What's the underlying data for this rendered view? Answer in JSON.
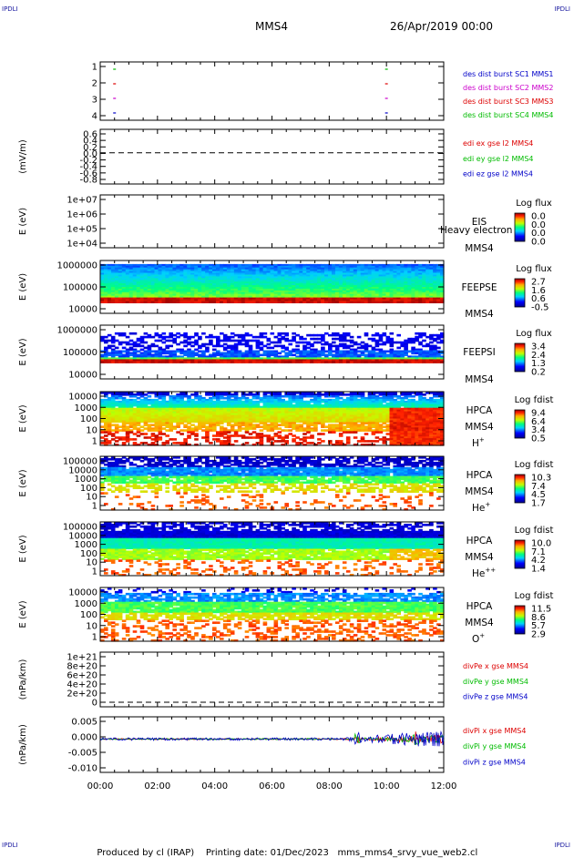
{
  "header": {
    "corner_tl": "IPDLI",
    "corner_tr": "IPDLI",
    "corner_bl": "IPDLI",
    "corner_br": "IPDLI",
    "mission": "MMS4",
    "date": "26/Apr/2019 00:00"
  },
  "footer": {
    "produced_by": "Produced by cl (IRAP)",
    "printing_date": "Printing date: 01/Dec/2023",
    "file": "mms_mms4_srvy_vue_web2.cl"
  },
  "colors": {
    "mms1": "#0000c8",
    "mms2": "#cc00cc",
    "mms3": "#dd0000",
    "mms4": "#00bb00",
    "ex": "#dd0000",
    "ey": "#00bb00",
    "ez": "#0000c8"
  },
  "chart_data": [
    {
      "id": "burst",
      "type": "scatter",
      "ylabel": "",
      "y_ticks": [
        "1",
        "2",
        "3",
        "4"
      ],
      "ylim": [
        0.5,
        4.5
      ],
      "legend": [
        {
          "text": "des dist burst SC1 MMS1",
          "color": "#0000c8"
        },
        {
          "text": "des dist burst SC2 MMS2",
          "color": "#cc00cc"
        },
        {
          "text": "des dist burst SC3 MMS3",
          "color": "#dd0000"
        },
        {
          "text": "des dist burst SC4 MMS4",
          "color": "#00bb00"
        }
      ],
      "series": [
        {
          "name": "des dist burst SC1 MMS1",
          "x": [
            0.5,
            10.0
          ],
          "y": [
            1,
            1
          ],
          "color": "#0000c8"
        },
        {
          "name": "des dist burst SC2 MMS2",
          "x": [
            0.5,
            10.0
          ],
          "y": [
            2,
            2
          ],
          "color": "#cc00cc"
        },
        {
          "name": "des dist burst SC3 MMS3",
          "x": [
            0.5,
            10.0
          ],
          "y": [
            3,
            3
          ],
          "color": "#dd0000"
        },
        {
          "name": "des dist burst SC4 MMS4",
          "x": [
            0.5,
            10.0
          ],
          "y": [
            4,
            4
          ],
          "color": "#00bb00"
        }
      ]
    },
    {
      "id": "edi",
      "type": "line",
      "ylabel": "(mV/m)",
      "y_ticks": [
        "0.6",
        "0.4",
        "0.2",
        "0.0",
        "-0.2",
        "-0.4",
        "-0.6",
        "-0.8"
      ],
      "ylim": [
        -0.85,
        0.65
      ],
      "zero_line": true,
      "legend": [
        {
          "text": "edi ex gse l2 MMS4",
          "color": "#dd0000"
        },
        {
          "text": "edi ey gse l2 MMS4",
          "color": "#00bb00"
        },
        {
          "text": "edi ez gse l2 MMS4",
          "color": "#0000c8"
        }
      ]
    },
    {
      "id": "eis",
      "type": "heatmap",
      "ylabel": "E (eV)",
      "y_ticks": [
        "1e+07",
        "1e+06",
        "1e+05",
        "1e+04"
      ],
      "ylim": [
        10000,
        10000000
      ],
      "scale": "log",
      "side_labels": [
        "EIS",
        "MMS4"
      ],
      "overlay_text": "Heavy electron to",
      "colorbar_title": "Log flux",
      "colorbar_ticks": [
        "0.0",
        "0.0",
        "0.0",
        "0.0"
      ],
      "values": []
    },
    {
      "id": "feepse",
      "type": "heatmap",
      "ylabel": "E (eV)",
      "y_ticks": [
        "1000000",
        "100000",
        "10000"
      ],
      "ylim": [
        10000,
        1000000
      ],
      "scale": "log",
      "side_labels": [
        "FEEPSE",
        "MMS4"
      ],
      "colorbar_title": "Log flux",
      "colorbar_ticks": [
        "2.7",
        "1.6",
        "0.6",
        "-0.5"
      ]
    },
    {
      "id": "feepsi",
      "type": "heatmap",
      "ylabel": "E (eV)",
      "y_ticks": [
        "1000000",
        "100000",
        "10000"
      ],
      "ylim": [
        10000,
        1000000
      ],
      "scale": "log",
      "side_labels": [
        "FEEPSI",
        "MMS4"
      ],
      "colorbar_title": "Log flux",
      "colorbar_ticks": [
        "3.4",
        "2.4",
        "1.3",
        "0.2"
      ]
    },
    {
      "id": "hpca_h",
      "type": "heatmap",
      "ylabel": "E (eV)",
      "y_ticks": [
        "10000",
        "1000",
        "100",
        "10",
        "1"
      ],
      "ylim": [
        1,
        30000
      ],
      "scale": "log",
      "side_labels": [
        "HPCA",
        "MMS4"
      ],
      "species": "H",
      "species_sup": "+",
      "colorbar_title": "Log fdist",
      "colorbar_ticks": [
        "9.4",
        "6.4",
        "3.4",
        "0.5"
      ]
    },
    {
      "id": "hpca_he",
      "type": "heatmap",
      "ylabel": "E (eV)",
      "y_ticks": [
        "100000",
        "10000",
        "1000",
        "100",
        "10",
        "1"
      ],
      "ylim": [
        1,
        100000
      ],
      "scale": "log",
      "side_labels": [
        "HPCA",
        "MMS4"
      ],
      "species": "He",
      "species_sup": "+",
      "colorbar_title": "Log fdist",
      "colorbar_ticks": [
        "10.3",
        "7.4",
        "4.5",
        "1.7"
      ]
    },
    {
      "id": "hpca_he2",
      "type": "heatmap",
      "ylabel": "E (eV)",
      "y_ticks": [
        "100000",
        "10000",
        "1000",
        "100",
        "10",
        "1"
      ],
      "ylim": [
        1,
        100000
      ],
      "scale": "log",
      "side_labels": [
        "HPCA",
        "MMS4"
      ],
      "species": "He",
      "species_sup": "++",
      "colorbar_title": "Log fdist",
      "colorbar_ticks": [
        "10.0",
        "7.1",
        "4.2",
        "1.4"
      ]
    },
    {
      "id": "hpca_o",
      "type": "heatmap",
      "ylabel": "E (eV)",
      "y_ticks": [
        "10000",
        "1000",
        "100",
        "10",
        "1"
      ],
      "ylim": [
        1,
        30000
      ],
      "scale": "log",
      "side_labels": [
        "HPCA",
        "MMS4"
      ],
      "species": "O",
      "species_sup": "+",
      "colorbar_title": "Log fdist",
      "colorbar_ticks": [
        "11.5",
        "8.6",
        "5.7",
        "2.9"
      ]
    },
    {
      "id": "divpe",
      "type": "line",
      "ylabel": "(nPa/km)",
      "y_ticks": [
        "1e+21",
        "8e+20",
        "6e+20",
        "4e+20",
        "2e+20",
        "0"
      ],
      "ylim": [
        -5e+19,
        1.05e+21
      ],
      "zero_line": true,
      "legend": [
        {
          "text": "divPe x gse MMS4",
          "color": "#dd0000"
        },
        {
          "text": "divPe y gse MMS4",
          "color": "#00bb00"
        },
        {
          "text": "divPe z gse MMS4",
          "color": "#0000c8"
        }
      ]
    },
    {
      "id": "divpi",
      "type": "line",
      "ylabel": "(nPa/km)",
      "y_ticks": [
        "0.005",
        "0.000",
        "-0.005",
        "-0.010"
      ],
      "ylim": [
        -0.0135,
        0.0085
      ],
      "legend": [
        {
          "text": "divPi x gse MMS4",
          "color": "#dd0000"
        },
        {
          "text": "divPi y gse MMS4",
          "color": "#00bb00"
        },
        {
          "text": "divPi z gse MMS4",
          "color": "#0000c8"
        }
      ]
    }
  ],
  "x_axis": {
    "ticks": [
      "00:00",
      "02:00",
      "04:00",
      "06:00",
      "08:00",
      "10:00",
      "12:00"
    ],
    "xlim": [
      0,
      12
    ]
  }
}
